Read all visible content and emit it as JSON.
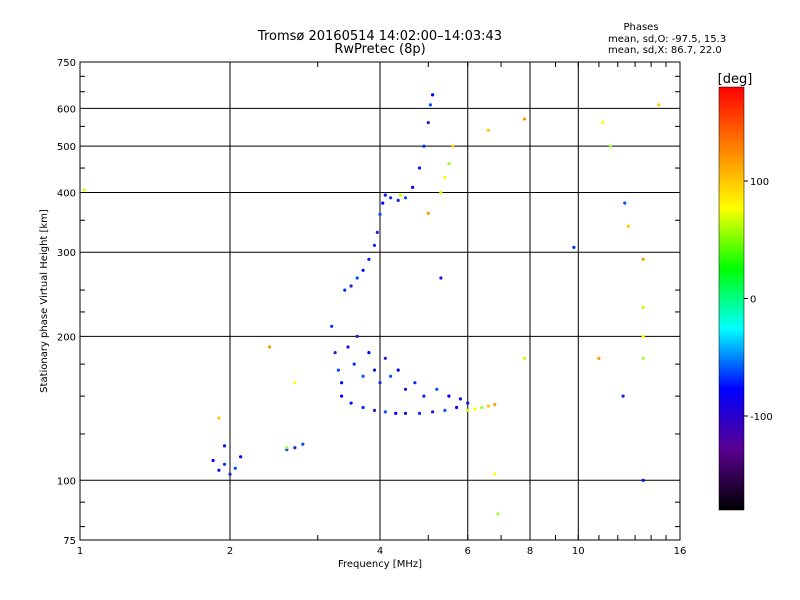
{
  "chart_data": {
    "type": "scatter",
    "title": "Tromsø 20160514 14:02:00–14:03:43",
    "subtitle": "RwPretec (8p)",
    "xlabel": "Frequency [MHz]",
    "ylabel": "Stationary phase Virtual Height [km]",
    "x_scale": "log",
    "y_scale": "log",
    "xlim": [
      1,
      16
    ],
    "ylim": [
      75,
      750
    ],
    "grid": true,
    "xticks": [
      1,
      2,
      4,
      6,
      8,
      10,
      16
    ],
    "xtick_labels": [
      "1",
      "2",
      "4",
      "6",
      "8",
      "10",
      "16"
    ],
    "yticks": [
      75,
      100,
      200,
      300,
      400,
      500,
      600,
      750
    ],
    "ytick_labels": [
      "75",
      "100",
      "200",
      "300",
      "400",
      "500",
      "600",
      "750"
    ],
    "stats": {
      "header": "Phases",
      "line_o": "mean, sd,O: -97.5, 15.3",
      "line_x": "mean, sd,X:  86.7, 22.0"
    },
    "colorbar": {
      "label": "[deg]",
      "range": [
        -180,
        180
      ],
      "tick_values": [
        100,
        0,
        -100
      ],
      "tick_labels": [
        "100",
        "0",
        "-100"
      ],
      "colors": [
        "#000000",
        "#5a0090",
        "#0000ff",
        "#00ffff",
        "#00ff00",
        "#ffff00",
        "#ff8000",
        "#ff0000"
      ]
    },
    "series": [
      {
        "description": "O-mode traces",
        "color_hint": "blue",
        "points": [
          [
            1.85,
            110
          ],
          [
            1.9,
            105
          ],
          [
            1.95,
            108
          ],
          [
            2.0,
            103
          ],
          [
            2.05,
            106
          ],
          [
            2.1,
            112
          ],
          [
            1.95,
            118
          ],
          [
            2.6,
            116
          ],
          [
            2.7,
            117
          ],
          [
            2.8,
            119
          ],
          [
            3.35,
            150
          ],
          [
            3.5,
            145
          ],
          [
            3.7,
            142
          ],
          [
            3.9,
            140
          ],
          [
            4.1,
            139
          ],
          [
            4.3,
            138
          ],
          [
            4.5,
            138
          ],
          [
            4.8,
            138
          ],
          [
            5.1,
            139
          ],
          [
            5.4,
            140
          ],
          [
            5.7,
            142
          ],
          [
            6.0,
            145
          ],
          [
            3.2,
            210
          ],
          [
            3.25,
            185
          ],
          [
            3.3,
            170
          ],
          [
            3.35,
            160
          ],
          [
            3.45,
            190
          ],
          [
            3.55,
            175
          ],
          [
            3.6,
            200
          ],
          [
            3.7,
            165
          ],
          [
            3.8,
            185
          ],
          [
            3.9,
            170
          ],
          [
            4.0,
            160
          ],
          [
            4.1,
            180
          ],
          [
            4.2,
            165
          ],
          [
            4.35,
            170
          ],
          [
            4.5,
            155
          ],
          [
            4.7,
            160
          ],
          [
            4.9,
            150
          ],
          [
            5.2,
            155
          ],
          [
            5.5,
            150
          ],
          [
            5.8,
            148
          ],
          [
            3.4,
            250
          ],
          [
            3.5,
            255
          ],
          [
            3.6,
            265
          ],
          [
            3.7,
            275
          ],
          [
            3.8,
            290
          ],
          [
            3.9,
            310
          ],
          [
            3.95,
            330
          ],
          [
            4.0,
            360
          ],
          [
            4.05,
            380
          ],
          [
            4.1,
            395
          ],
          [
            4.2,
            390
          ],
          [
            4.35,
            385
          ],
          [
            4.5,
            390
          ],
          [
            4.65,
            410
          ],
          [
            4.8,
            450
          ],
          [
            4.9,
            500
          ],
          [
            5.0,
            560
          ],
          [
            5.05,
            610
          ],
          [
            5.1,
            640
          ],
          [
            5.3,
            265
          ],
          [
            9.8,
            307
          ],
          [
            12.3,
            150
          ],
          [
            12.4,
            380
          ],
          [
            13.5,
            100
          ]
        ]
      },
      {
        "description": "X-mode traces",
        "color_hint": "yellow-green",
        "points": [
          [
            6.0,
            140
          ],
          [
            6.2,
            141
          ],
          [
            6.4,
            142
          ],
          [
            6.6,
            143
          ],
          [
            6.8,
            144
          ],
          [
            5.3,
            400
          ],
          [
            5.4,
            430
          ],
          [
            5.5,
            460
          ],
          [
            5.6,
            500
          ],
          [
            5.0,
            362
          ],
          [
            4.4,
            395
          ],
          [
            2.7,
            160
          ],
          [
            2.6,
            117
          ],
          [
            1.9,
            135
          ],
          [
            2.4,
            190
          ],
          [
            1.02,
            405
          ],
          [
            6.8,
            103
          ],
          [
            6.9,
            85
          ],
          [
            6.6,
            540
          ],
          [
            7.8,
            570
          ],
          [
            7.8,
            180
          ],
          [
            11.2,
            560
          ],
          [
            11.6,
            500
          ],
          [
            12.6,
            340
          ],
          [
            13.5,
            290
          ],
          [
            13.5,
            230
          ],
          [
            13.5,
            200
          ],
          [
            13.5,
            180
          ],
          [
            14.5,
            610
          ],
          [
            11.0,
            180
          ]
        ]
      }
    ]
  }
}
